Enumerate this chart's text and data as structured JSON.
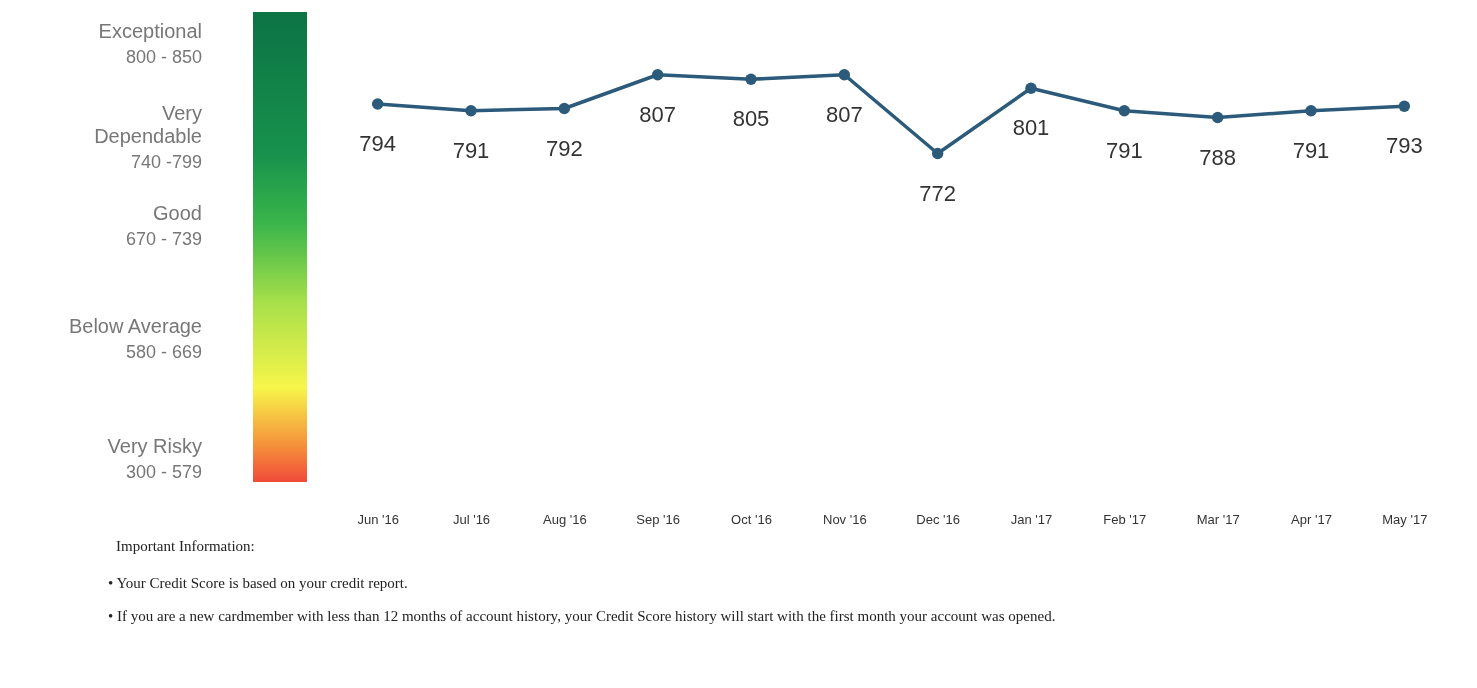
{
  "chart_data": {
    "type": "line",
    "categories": [
      "Jun '16",
      "Jul '16",
      "Aug '16",
      "Sep '16",
      "Oct '16",
      "Nov '16",
      "Dec '16",
      "Jan '17",
      "Feb '17",
      "Mar '17",
      "Apr '17",
      "May '17"
    ],
    "series": [
      {
        "color": "#2b5a7a",
        "values": [
          794,
          791,
          792,
          807,
          805,
          807,
          772,
          801,
          791,
          788,
          791,
          793
        ]
      }
    ],
    "data_labels": true,
    "marker": "circle",
    "grid": false,
    "legend": false,
    "annotations": [
      "Exceptional",
      "800 - 850",
      "Very Dependable",
      "740 -799",
      "Good",
      "670 - 739",
      "Below Average",
      "580 - 669",
      "Very Risky",
      "300 - 579",
      "Important Information:",
      "• Your Credit Score is based on your credit report.",
      "• If you are a new cardmember with less than 12 months of account history, your Credit Score history will start with the first month your account was opened."
    ]
  }
}
